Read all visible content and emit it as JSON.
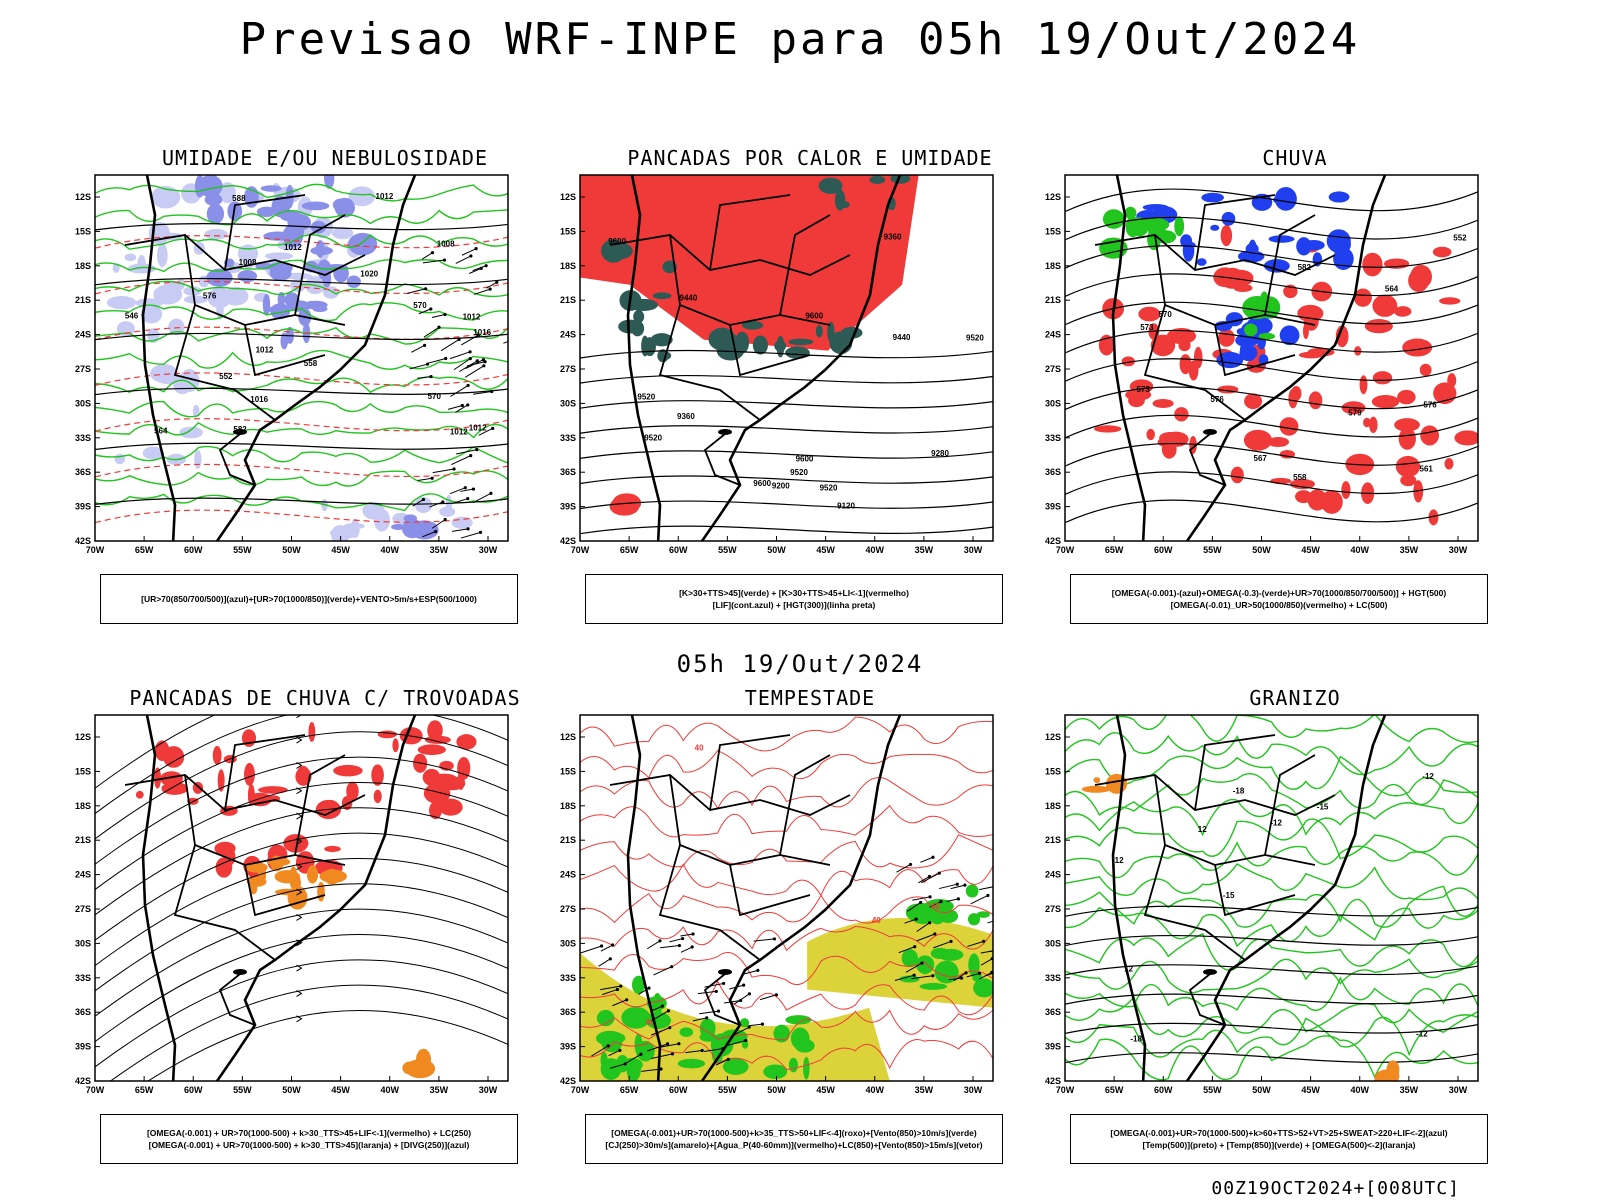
{
  "title": "Previsao WRF-INPE  para 05h 19/Out/2024",
  "mid_title": "05h 19/Out/2024",
  "footer": "00Z19OCT2024+[008UTC]",
  "lat_labels": [
    "12S",
    "15S",
    "18S",
    "21S",
    "24S",
    "27S",
    "30S",
    "33S",
    "36S",
    "39S",
    "42S"
  ],
  "lon_labels": [
    "70W",
    "65W",
    "60W",
    "55W",
    "50W",
    "45W",
    "40W",
    "35W",
    "30W"
  ],
  "colors": {
    "blue_shade": "#8a8fe8",
    "light_blue": "#c8cbf4",
    "green": "#22c41e",
    "red": "#f03a3a",
    "dark_teal": "#2e5a55",
    "orange": "#f08a20",
    "yellow": "#dcd23a",
    "blue": "#2040f0"
  },
  "panels": [
    {
      "id": "umidade",
      "title": "UMIDADE E/OU NEBULOSIDADE",
      "legend": [
        "[UR>70(850/700/500)](azul)+[UR>70(1000/850)](verde)+VENTO>5m/s+ESP(500/1000)"
      ],
      "labels": [
        "1008",
        "1012",
        "1020",
        "1016",
        "1012",
        "1012",
        "1016",
        "1012",
        "1012",
        "1008",
        "576",
        "570",
        "570",
        "582",
        "564",
        "558",
        "552",
        "546",
        "588",
        "1012"
      ]
    },
    {
      "id": "pancadas_calor",
      "title": "PANCADAS POR CALOR E UMIDADE",
      "legend": [
        "[K>30+TTS>45](verde) + [K>30+TTS>45+LI<-1](vermelho)",
        "[LIF](cont.azul) + [HGT(300)](linha preta)"
      ],
      "labels": [
        "9600",
        "9600",
        "9600",
        "9600",
        "9520",
        "9520",
        "9520",
        "9520",
        "9440",
        "9440",
        "9360",
        "9280",
        "9200",
        "9120",
        "9360",
        "9520"
      ]
    },
    {
      "id": "chuva",
      "title": "CHUVA",
      "legend": [
        "[OMEGA(-0.001)-(azul)+OMEGA(-0.3)-(verde)+UR>70(1000/850/700/500)] + HGT(500)",
        "[OMEGA(-0.01)_UR>50(1000/850)(vermelho) + LC(500)"
      ],
      "labels": [
        "582",
        "579",
        "576",
        "573",
        "570",
        "567",
        "564",
        "561",
        "558",
        "576",
        "573",
        "552"
      ]
    },
    {
      "id": "trovoadas",
      "title": "PANCADAS DE CHUVA C/ TROVOADAS",
      "legend": [
        "[OMEGA(-0.001) + UR>70(1000-500) + k>30_TTS>45+LIF<-1](vermelho) + LC(250)",
        "[OMEGA(-0.001) + UR>70(1000-500) + k>30_TTS>45](laranja) + [DIVG(250)](azul)"
      ],
      "labels": []
    },
    {
      "id": "tempestade",
      "title": "TEMPESTADE",
      "legend": [
        "[OMEGA(-0.001)+UR>70(1000-500)+k>35_TTS>50+LIF<-4](roxo)+[Vento(850)>10m/s](verde)",
        "[CJ(250)>30m/s](amarelo)+[Agua_P(40-60mm)](vermelho)+LC(850)+[Vento(850)>15m/s](vetor)"
      ],
      "labels": [
        "40",
        "40",
        "40",
        "40"
      ]
    },
    {
      "id": "granizo",
      "title": "GRANIZO",
      "legend": [
        "[OMEGA(-0.001)+UR>70(1000-500)+k>60+TTS>52+VT>25+SWEAT>220+LIF<-2](azul)",
        "[Temp(500)](preto) + [Temp(850)](verde) + [OMEGA(500)<-2](laranja)"
      ],
      "labels": [
        "-12",
        "-12",
        "-12",
        "-15",
        "-15",
        "-18",
        "-18",
        "-12",
        "12",
        "12"
      ]
    }
  ]
}
